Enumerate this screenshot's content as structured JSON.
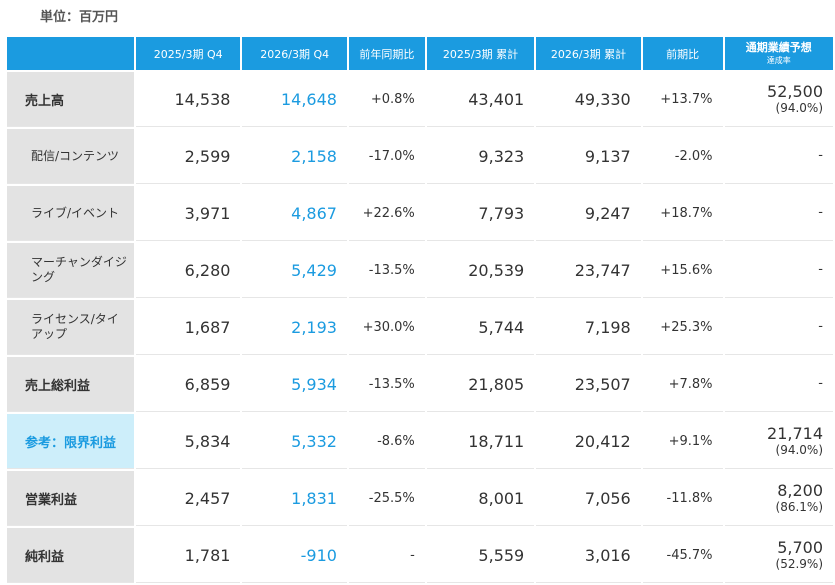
{
  "unit": "単位：百万円",
  "columns": {
    "q4_prev": "2025/3期 Q4",
    "q4_cur": "2026/3期 Q4",
    "yoy": "前年同期比",
    "cum_prev": "2025/3期 累計",
    "cum_cur": "2026/3期 累計",
    "cum_change": "前期比",
    "forecast": "通期業績予想",
    "forecast_sub": "達成率"
  },
  "rows": [
    {
      "label": "売上高",
      "q4_prev": "14,538",
      "q4_cur": "14,648",
      "yoy": "+0.8%",
      "cum_prev": "43,401",
      "cum_cur": "49,330",
      "cum_change": "+13.7%",
      "forecast": "52,500",
      "forecast_rate": "(94.0%)"
    },
    {
      "label": "配信/コンテンツ",
      "q4_prev": "2,599",
      "q4_cur": "2,158",
      "yoy": "-17.0%",
      "cum_prev": "9,323",
      "cum_cur": "9,137",
      "cum_change": "-2.0%",
      "forecast": "-",
      "forecast_rate": ""
    },
    {
      "label": "ライブ/イベント",
      "q4_prev": "3,971",
      "q4_cur": "4,867",
      "yoy": "+22.6%",
      "cum_prev": "7,793",
      "cum_cur": "9,247",
      "cum_change": "+18.7%",
      "forecast": "-",
      "forecast_rate": ""
    },
    {
      "label": "マーチャンダイジング",
      "q4_prev": "6,280",
      "q4_cur": "5,429",
      "yoy": "-13.5%",
      "cum_prev": "20,539",
      "cum_cur": "23,747",
      "cum_change": "+15.6%",
      "forecast": "-",
      "forecast_rate": ""
    },
    {
      "label": "ライセンス/タイアップ",
      "q4_prev": "1,687",
      "q4_cur": "2,193",
      "yoy": "+30.0%",
      "cum_prev": "5,744",
      "cum_cur": "7,198",
      "cum_change": "+25.3%",
      "forecast": "-",
      "forecast_rate": ""
    },
    {
      "label": "売上総利益",
      "q4_prev": "6,859",
      "q4_cur": "5,934",
      "yoy": "-13.5%",
      "cum_prev": "21,805",
      "cum_cur": "23,507",
      "cum_change": "+7.8%",
      "forecast": "-",
      "forecast_rate": ""
    },
    {
      "label": "参考：限界利益",
      "q4_prev": "5,834",
      "q4_cur": "5,332",
      "yoy": "-8.6%",
      "cum_prev": "18,711",
      "cum_cur": "20,412",
      "cum_change": "+9.1%",
      "forecast": "21,714",
      "forecast_rate": "(94.0%)"
    },
    {
      "label": "営業利益",
      "q4_prev": "2,457",
      "q4_cur": "1,831",
      "yoy": "-25.5%",
      "cum_prev": "8,001",
      "cum_cur": "7,056",
      "cum_change": "-11.8%",
      "forecast": "8,200",
      "forecast_rate": "(86.1%)"
    },
    {
      "label": "純利益",
      "q4_prev": "1,781",
      "q4_cur": "-910",
      "yoy": "-",
      "cum_prev": "5,559",
      "cum_cur": "3,016",
      "cum_change": "-45.7%",
      "forecast": "5,700",
      "forecast_rate": "(52.9%)"
    }
  ],
  "colors": {
    "header_bg": "#1b9be0",
    "current_value": "#1b9be0",
    "label_bg": "#e3e3e3",
    "reference_label_bg": "#cdeefa"
  }
}
